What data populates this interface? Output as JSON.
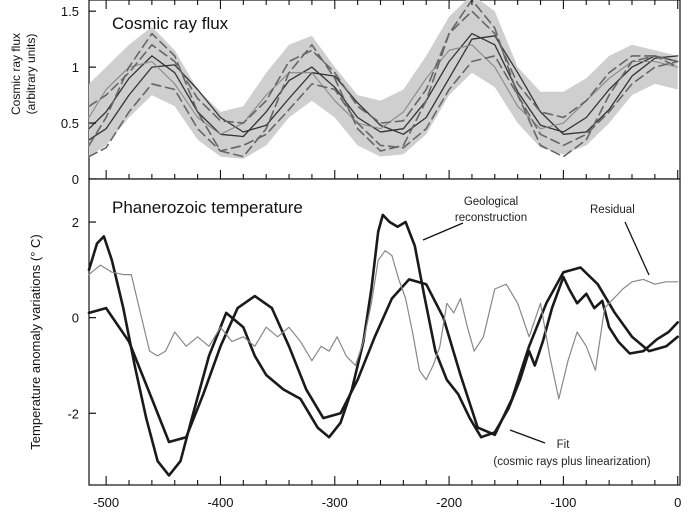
{
  "chart_data": [
    {
      "type": "line",
      "title": "Cosmic ray flux",
      "ylabel_lines": [
        "Cosmic ray flux",
        "(arbitrary units)"
      ],
      "xlim": [
        -515,
        2
      ],
      "ylim": [
        0,
        1.6
      ],
      "yticks": [
        0,
        0.5,
        1,
        1.5
      ],
      "ytick_labels": [
        "0",
        "0.5",
        "1",
        "1.5"
      ],
      "band": {
        "x": [
          -515,
          -500,
          -480,
          -460,
          -440,
          -420,
          -400,
          -380,
          -360,
          -340,
          -320,
          -300,
          -280,
          -260,
          -240,
          -220,
          -200,
          -180,
          -160,
          -140,
          -120,
          -100,
          -80,
          -60,
          -40,
          -20,
          0
        ],
        "upper": [
          0.85,
          1.0,
          1.2,
          1.36,
          1.15,
          0.8,
          0.6,
          0.65,
          0.95,
          1.2,
          1.28,
          1.0,
          0.75,
          0.7,
          0.8,
          1.1,
          1.45,
          1.65,
          1.5,
          1.0,
          0.78,
          0.78,
          0.9,
          1.1,
          1.2,
          1.15,
          1.1
        ],
        "lower": [
          0.2,
          0.3,
          0.55,
          0.75,
          0.65,
          0.35,
          0.2,
          0.18,
          0.3,
          0.55,
          0.7,
          0.55,
          0.3,
          0.2,
          0.22,
          0.4,
          0.75,
          0.95,
          0.82,
          0.5,
          0.28,
          0.22,
          0.3,
          0.5,
          0.75,
          0.85,
          0.8
        ]
      },
      "series": [
        {
          "style": "solid-dark",
          "x": [
            -515,
            -500,
            -480,
            -460,
            -440,
            -420,
            -400,
            -380,
            -360,
            -340,
            -320,
            -300,
            -280,
            -260,
            -240,
            -220,
            -200,
            -180,
            -160,
            -140,
            -120,
            -100,
            -80,
            -60,
            -40,
            -20,
            0
          ],
          "y": [
            0.45,
            0.6,
            0.9,
            1.1,
            0.95,
            0.6,
            0.4,
            0.38,
            0.6,
            0.88,
            1.0,
            0.82,
            0.55,
            0.42,
            0.45,
            0.7,
            1.05,
            1.3,
            1.2,
            0.78,
            0.48,
            0.42,
            0.55,
            0.8,
            1.0,
            1.1,
            1.05
          ]
        },
        {
          "style": "solid-dark",
          "x": [
            -515,
            -500,
            -480,
            -460,
            -440,
            -420,
            -400,
            -380,
            -360,
            -340,
            -320,
            -300,
            -280,
            -260,
            -240,
            -220,
            -200,
            -180,
            -160,
            -140,
            -120,
            -100,
            -80,
            -60,
            -40,
            -20,
            0
          ],
          "y": [
            0.35,
            0.45,
            0.75,
            1.0,
            1.02,
            0.8,
            0.55,
            0.42,
            0.48,
            0.72,
            0.95,
            0.92,
            0.68,
            0.48,
            0.4,
            0.55,
            0.9,
            1.25,
            1.28,
            0.95,
            0.6,
            0.4,
            0.42,
            0.62,
            0.92,
            1.08,
            1.1
          ]
        },
        {
          "style": "solid-gray",
          "x": [
            -515,
            -500,
            -480,
            -460,
            -440,
            -420,
            -400,
            -380,
            -360,
            -340,
            -320,
            -300,
            -280,
            -260,
            -240,
            -220,
            -200,
            -180,
            -160,
            -140,
            -120,
            -100,
            -80,
            -60,
            -40,
            -20,
            0
          ],
          "y": [
            0.55,
            0.8,
            1.0,
            1.05,
            0.85,
            0.55,
            0.4,
            0.5,
            0.75,
            0.95,
            0.95,
            0.7,
            0.5,
            0.45,
            0.6,
            0.9,
            1.15,
            1.2,
            1.0,
            0.65,
            0.45,
            0.5,
            0.7,
            0.9,
            1.05,
            1.05,
            1.0
          ]
        },
        {
          "style": "dashed",
          "x": [
            -515,
            -500,
            -480,
            -460,
            -440,
            -420,
            -400,
            -380,
            -360,
            -340,
            -320,
            -300,
            -280,
            -260,
            -240,
            -220,
            -200,
            -180,
            -160,
            -140,
            -120,
            -100,
            -80,
            -60,
            -40,
            -20,
            0
          ],
          "y": [
            0.3,
            0.55,
            1.0,
            1.3,
            1.1,
            0.6,
            0.25,
            0.2,
            0.45,
            0.95,
            1.2,
            0.9,
            0.45,
            0.25,
            0.3,
            0.7,
            1.3,
            1.6,
            1.35,
            0.75,
            0.3,
            0.2,
            0.35,
            0.75,
            1.05,
            1.1,
            1.0
          ]
        },
        {
          "style": "dashed",
          "x": [
            -515,
            -500,
            -480,
            -460,
            -440,
            -420,
            -400,
            -380,
            -360,
            -340,
            -320,
            -300,
            -280,
            -260,
            -240,
            -220,
            -200,
            -180,
            -160,
            -140,
            -120,
            -100,
            -80,
            -60,
            -40,
            -20,
            0
          ],
          "y": [
            0.65,
            0.75,
            0.95,
            1.2,
            1.05,
            0.72,
            0.52,
            0.5,
            0.7,
            1.05,
            1.15,
            0.95,
            0.65,
            0.5,
            0.52,
            0.8,
            1.3,
            1.5,
            1.3,
            0.85,
            0.6,
            0.55,
            0.7,
            0.95,
            1.1,
            1.1,
            1.05
          ]
        },
        {
          "style": "dashed",
          "x": [
            -515,
            -500,
            -480,
            -460,
            -440,
            -420,
            -400,
            -380,
            -360,
            -340,
            -320,
            -300,
            -280,
            -260,
            -240,
            -220,
            -200,
            -180,
            -160,
            -140,
            -120,
            -100,
            -80,
            -60,
            -40,
            -20,
            0
          ],
          "y": [
            0.2,
            0.28,
            0.6,
            0.85,
            0.8,
            0.45,
            0.25,
            0.3,
            0.4,
            0.62,
            0.85,
            0.8,
            0.5,
            0.3,
            0.28,
            0.45,
            0.8,
            1.05,
            1.1,
            0.75,
            0.4,
            0.3,
            0.4,
            0.6,
            0.85,
            1.0,
            1.05
          ]
        }
      ]
    },
    {
      "type": "line",
      "title": "Phanerozoic temperature",
      "ylabel": "Temperature anomaly variations (° C)",
      "xlim": [
        -515,
        2
      ],
      "ylim": [
        -3.5,
        2.9
      ],
      "yticks": [
        -2,
        0,
        2
      ],
      "ytick_labels": [
        "-2",
        "0",
        "2"
      ],
      "xticks": [
        -500,
        -400,
        -300,
        -200,
        -100,
        0
      ],
      "xtick_labels": [
        "-500",
        "-400",
        "-300",
        "-200",
        "-100",
        "0"
      ],
      "annotations": [
        {
          "lines": [
            "Geological",
            "reconstruction"
          ]
        },
        {
          "lines": [
            "Residual"
          ]
        },
        {
          "lines": [
            "Fit",
            "(cosmic rays plus linearization)"
          ]
        }
      ],
      "series": [
        {
          "name": "Geological reconstruction",
          "style": "thick",
          "x": [
            -515,
            -508,
            -502,
            -495,
            -485,
            -475,
            -465,
            -455,
            -445,
            -435,
            -425,
            -410,
            -395,
            -380,
            -370,
            -360,
            -345,
            -330,
            -315,
            -305,
            -295,
            -285,
            -275,
            -268,
            -262,
            -258,
            -252,
            -245,
            -238,
            -230,
            -222,
            -212,
            -202,
            -192,
            -182,
            -172,
            -160,
            -148,
            -138,
            -130,
            -125,
            -118,
            -110,
            -100,
            -95,
            -88,
            -80,
            -73,
            -66,
            -60,
            -52,
            -42,
            -30,
            -18,
            -8,
            0
          ],
          "y": [
            1.0,
            1.55,
            1.7,
            1.2,
            0.2,
            -1.0,
            -2.1,
            -3.0,
            -3.3,
            -3.0,
            -2.1,
            -0.8,
            0.1,
            -0.2,
            -0.8,
            -1.2,
            -1.5,
            -1.7,
            -2.3,
            -2.5,
            -2.2,
            -1.5,
            -0.5,
            0.6,
            1.8,
            2.15,
            2.0,
            1.9,
            2.0,
            1.5,
            0.5,
            -0.7,
            -1.3,
            -1.6,
            -2.1,
            -2.5,
            -2.4,
            -1.9,
            -1.3,
            -0.7,
            -1.0,
            -0.5,
            0.2,
            0.85,
            0.6,
            0.3,
            0.5,
            0.2,
            0.35,
            -0.2,
            -0.5,
            -0.75,
            -0.7,
            -0.45,
            -0.3,
            -0.1
          ]
        },
        {
          "name": "Fit",
          "style": "thick",
          "x": [
            -515,
            -500,
            -480,
            -460,
            -445,
            -430,
            -415,
            -400,
            -385,
            -370,
            -355,
            -340,
            -325,
            -310,
            -295,
            -280,
            -265,
            -250,
            -235,
            -220,
            -205,
            -190,
            -175,
            -160,
            -145,
            -130,
            -115,
            -100,
            -85,
            -70,
            -55,
            -40,
            -25,
            -10,
            0
          ],
          "y": [
            0.1,
            0.2,
            -0.5,
            -1.7,
            -2.6,
            -2.5,
            -1.6,
            -0.6,
            0.2,
            0.45,
            0.2,
            -0.6,
            -1.5,
            -2.1,
            -2.0,
            -1.3,
            -0.4,
            0.4,
            0.8,
            0.7,
            0.0,
            -1.2,
            -2.3,
            -2.45,
            -1.7,
            -0.6,
            0.3,
            0.95,
            1.05,
            0.7,
            0.1,
            -0.4,
            -0.7,
            -0.6,
            -0.4
          ]
        },
        {
          "name": "Residual",
          "style": "thin",
          "x": [
            -515,
            -505,
            -495,
            -485,
            -478,
            -470,
            -462,
            -455,
            -448,
            -440,
            -430,
            -420,
            -410,
            -400,
            -390,
            -380,
            -370,
            -360,
            -350,
            -340,
            -330,
            -320,
            -312,
            -305,
            -298,
            -290,
            -282,
            -275,
            -268,
            -262,
            -256,
            -250,
            -244,
            -238,
            -232,
            -226,
            -220,
            -214,
            -208,
            -202,
            -196,
            -190,
            -184,
            -178,
            -170,
            -160,
            -150,
            -140,
            -130,
            -120,
            -112,
            -104,
            -96,
            -88,
            -80,
            -72,
            -64,
            -56,
            -48,
            -40,
            -30,
            -20,
            -10,
            0
          ],
          "y": [
            0.9,
            1.1,
            0.95,
            0.9,
            0.9,
            0.1,
            -0.7,
            -0.8,
            -0.7,
            -0.3,
            -0.6,
            -0.4,
            -0.6,
            -0.2,
            -0.5,
            -0.4,
            -0.6,
            -0.2,
            -0.4,
            -0.2,
            -0.5,
            -0.9,
            -0.6,
            -0.7,
            -0.4,
            -0.8,
            -1.0,
            -0.5,
            0.3,
            1.2,
            1.4,
            1.3,
            0.8,
            0.4,
            -0.3,
            -1.1,
            -1.3,
            -1.0,
            -0.6,
            0.3,
            0.1,
            0.4,
            -0.2,
            -0.7,
            -0.4,
            0.6,
            0.7,
            0.3,
            -0.4,
            0.3,
            -0.8,
            -1.7,
            -0.9,
            -0.3,
            -0.6,
            -1.1,
            0.2,
            0.4,
            0.6,
            0.75,
            0.8,
            0.7,
            0.75,
            0.75
          ]
        }
      ]
    }
  ]
}
